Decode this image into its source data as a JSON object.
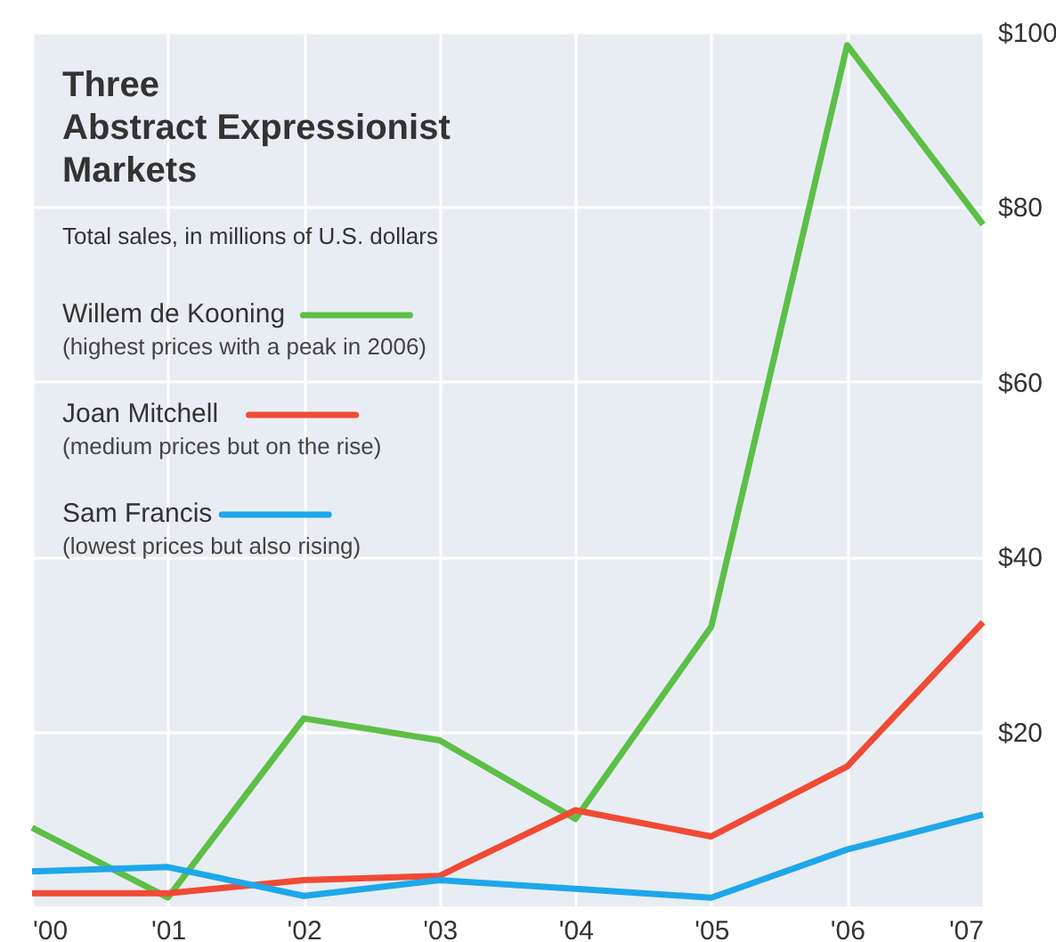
{
  "chart_data": {
    "type": "line",
    "title": "Three\nAbstract Expressionist\nMarkets",
    "subtitle": "Total sales, in millions of U.S. dollars",
    "categories": [
      "'00",
      "'01",
      "'02",
      "'03",
      "'04",
      "'05",
      "'06",
      "'07"
    ],
    "series": [
      {
        "name": "Willem de Kooning",
        "color": "#5cbf46",
        "values": [
          9,
          1,
          21.5,
          19,
          10,
          32,
          98.5,
          78
        ]
      },
      {
        "name": "Joan Mitchell",
        "color": "#f04a35",
        "values": [
          1.5,
          1.5,
          3,
          3.5,
          11,
          8,
          16,
          32.5
        ]
      },
      {
        "name": "Sam Francis",
        "color": "#1ea7ea",
        "values": [
          4,
          4.5,
          1.2,
          3,
          2,
          1,
          6.5,
          10.5
        ]
      }
    ],
    "annotations": [
      "(highest prices with a peak in 2006)",
      "(medium prices but on the rise)",
      "(lowest prices but also rising)"
    ],
    "ylim": [
      0,
      100
    ],
    "yticks": [
      {
        "value": 20,
        "label": "$20"
      },
      {
        "value": 40,
        "label": "$40"
      },
      {
        "value": 60,
        "label": "$60"
      },
      {
        "value": 80,
        "label": "$80"
      },
      {
        "value": 100,
        "label": "$100"
      }
    ],
    "grid": true,
    "legend": "top left",
    "line_style": "solid",
    "marker": "none"
  }
}
